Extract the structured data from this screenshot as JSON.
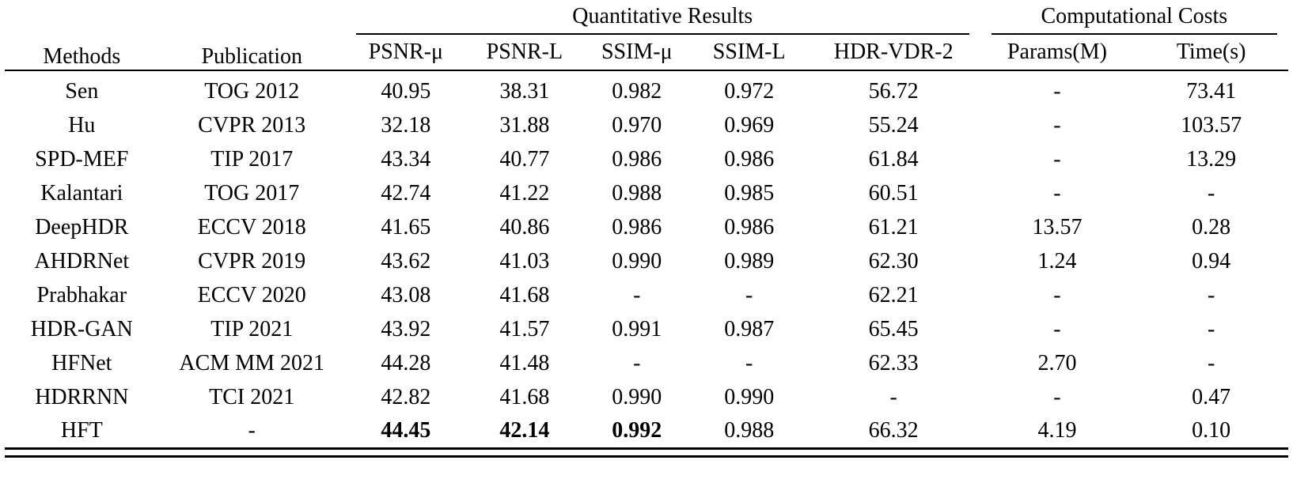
{
  "table": {
    "groups": {
      "quantitative": "Quantitative Results",
      "computational": "Computational Costs"
    },
    "columns": [
      "Methods",
      "Publication",
      "PSNR-μ",
      "PSNR-L",
      "SSIM-μ",
      "SSIM-L",
      "HDR-VDR-2",
      "Params(M)",
      "Time(s)"
    ],
    "rows": [
      {
        "cells": [
          "Sen",
          "TOG 2012",
          "40.95",
          "38.31",
          "0.982",
          "0.972",
          "56.72",
          "-",
          "73.41"
        ],
        "bold": []
      },
      {
        "cells": [
          "Hu",
          "CVPR 2013",
          "32.18",
          "31.88",
          "0.970",
          "0.969",
          "55.24",
          "-",
          "103.57"
        ],
        "bold": []
      },
      {
        "cells": [
          "SPD-MEF",
          "TIP 2017",
          "43.34",
          "40.77",
          "0.986",
          "0.986",
          "61.84",
          "-",
          "13.29"
        ],
        "bold": []
      },
      {
        "cells": [
          "Kalantari",
          "TOG 2017",
          "42.74",
          "41.22",
          "0.988",
          "0.985",
          "60.51",
          "-",
          "-"
        ],
        "bold": []
      },
      {
        "cells": [
          "DeepHDR",
          "ECCV 2018",
          "41.65",
          "40.86",
          "0.986",
          "0.986",
          "61.21",
          "13.57",
          "0.28"
        ],
        "bold": []
      },
      {
        "cells": [
          "AHDRNet",
          "CVPR 2019",
          "43.62",
          "41.03",
          "0.990",
          "0.989",
          "62.30",
          "1.24",
          "0.94"
        ],
        "bold": []
      },
      {
        "cells": [
          "Prabhakar",
          "ECCV 2020",
          "43.08",
          "41.68",
          "-",
          "-",
          "62.21",
          "-",
          "-"
        ],
        "bold": []
      },
      {
        "cells": [
          "HDR-GAN",
          "TIP 2021",
          "43.92",
          "41.57",
          "0.991",
          "0.987",
          "65.45",
          "-",
          "-"
        ],
        "bold": []
      },
      {
        "cells": [
          "HFNet",
          "ACM MM 2021",
          "44.28",
          "41.48",
          "-",
          "-",
          "62.33",
          "2.70",
          "-"
        ],
        "bold": []
      },
      {
        "cells": [
          "HDRRNN",
          "TCI 2021",
          "42.82",
          "41.68",
          "0.990",
          "0.990",
          "-",
          "-",
          "0.47"
        ],
        "bold": []
      },
      {
        "cells": [
          "HFT",
          "-",
          "44.45",
          "42.14",
          "0.992",
          "0.988",
          "66.32",
          "4.19",
          "0.10"
        ],
        "bold": [
          2,
          3,
          4
        ]
      }
    ]
  }
}
